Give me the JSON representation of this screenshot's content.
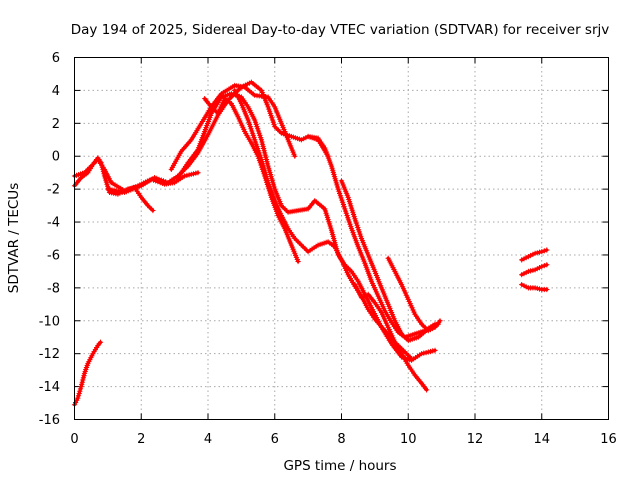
{
  "chart_data": {
    "type": "scatter",
    "title": "Day 194 of 2025, Sidereal Day-to-day VTEC variation (SDTVAR) for receiver srjv",
    "xlabel": "GPS time / hours",
    "ylabel": "SDTVAR / TECUs",
    "xlim": [
      0,
      16
    ],
    "ylim": [
      -16,
      6
    ],
    "xticks": [
      "0",
      "2",
      "4",
      "6",
      "8",
      "10",
      "12",
      "14",
      "16"
    ],
    "yticks": [
      "6",
      "4",
      "2",
      "0",
      "-2",
      "-4",
      "-6",
      "-8",
      "-10",
      "-12",
      "-14",
      "-16"
    ],
    "grid": true,
    "marker_color": "#ff0000",
    "series": [
      {
        "points": [
          [
            0.0,
            -1.8
          ],
          [
            0.2,
            -1.3
          ],
          [
            0.4,
            -1.0
          ],
          [
            0.55,
            -0.5
          ],
          [
            0.7,
            -0.1
          ],
          [
            0.8,
            -0.4
          ],
          [
            0.9,
            -1.2
          ],
          [
            1.05,
            -2.2
          ],
          [
            1.3,
            -2.3
          ],
          [
            1.6,
            -2.0
          ],
          [
            1.8,
            -1.9
          ],
          [
            2.0,
            -2.5
          ],
          [
            2.2,
            -3.0
          ],
          [
            2.35,
            -3.3
          ]
        ]
      },
      {
        "points": [
          [
            0.0,
            -1.2
          ],
          [
            0.3,
            -1.0
          ],
          [
            0.5,
            -0.6
          ],
          [
            0.7,
            -0.2
          ],
          [
            0.9,
            -0.8
          ],
          [
            1.1,
            -1.6
          ],
          [
            1.5,
            -2.1
          ],
          [
            1.9,
            -1.8
          ],
          [
            2.3,
            -1.4
          ],
          [
            2.7,
            -1.7
          ],
          [
            3.0,
            -1.6
          ],
          [
            3.3,
            -1.2
          ],
          [
            3.7,
            -1.0
          ]
        ]
      },
      {
        "points": [
          [
            1.0,
            -2.0
          ],
          [
            1.5,
            -2.2
          ],
          [
            2.0,
            -1.8
          ],
          [
            2.4,
            -1.3
          ],
          [
            2.8,
            -1.6
          ],
          [
            3.1,
            -1.2
          ],
          [
            3.4,
            -0.6
          ],
          [
            3.7,
            0.2
          ],
          [
            4.0,
            1.3
          ],
          [
            4.3,
            2.5
          ],
          [
            4.6,
            3.4
          ],
          [
            5.0,
            4.2
          ],
          [
            5.3,
            4.5
          ],
          [
            5.6,
            4.0
          ],
          [
            5.8,
            3.0
          ],
          [
            6.0,
            1.8
          ],
          [
            6.2,
            1.4
          ],
          [
            6.5,
            1.2
          ],
          [
            6.8,
            1.0
          ],
          [
            7.0,
            1.2
          ],
          [
            7.3,
            1.0
          ],
          [
            7.6,
            0.0
          ]
        ]
      },
      {
        "points": [
          [
            2.9,
            -0.8
          ],
          [
            3.2,
            0.3
          ],
          [
            3.5,
            1.0
          ],
          [
            3.8,
            2.0
          ],
          [
            4.1,
            3.0
          ],
          [
            4.4,
            3.8
          ],
          [
            4.8,
            4.3
          ],
          [
            5.1,
            4.2
          ],
          [
            5.4,
            3.7
          ],
          [
            5.8,
            3.6
          ],
          [
            6.0,
            3.0
          ],
          [
            6.2,
            2.0
          ],
          [
            6.4,
            1.0
          ],
          [
            6.6,
            0.0
          ]
        ]
      },
      {
        "points": [
          [
            3.1,
            -1.3
          ],
          [
            3.4,
            -0.4
          ],
          [
            3.7,
            0.4
          ],
          [
            3.9,
            1.5
          ],
          [
            4.1,
            2.6
          ],
          [
            4.4,
            3.6
          ],
          [
            4.7,
            3.8
          ],
          [
            5.0,
            3.6
          ],
          [
            5.2,
            3.0
          ],
          [
            5.4,
            2.2
          ],
          [
            5.6,
            1.0
          ],
          [
            5.8,
            -0.6
          ],
          [
            6.0,
            -2.0
          ],
          [
            6.2,
            -3.0
          ],
          [
            6.4,
            -3.4
          ],
          [
            6.7,
            -3.3
          ],
          [
            7.0,
            -3.2
          ],
          [
            7.2,
            -2.7
          ],
          [
            7.5,
            -3.2
          ],
          [
            7.7,
            -4.5
          ],
          [
            7.9,
            -6.0
          ],
          [
            8.1,
            -6.6
          ],
          [
            8.3,
            -7.0
          ],
          [
            8.5,
            -7.6
          ],
          [
            8.7,
            -8.4
          ],
          [
            8.9,
            -9.2
          ],
          [
            9.2,
            -10.4
          ],
          [
            9.5,
            -11.4
          ],
          [
            9.8,
            -12.2
          ],
          [
            10.1,
            -12.4
          ],
          [
            10.4,
            -12.0
          ],
          [
            10.8,
            -11.8
          ]
        ]
      },
      {
        "points": [
          [
            3.9,
            3.5
          ],
          [
            4.1,
            3.0
          ],
          [
            4.3,
            2.6
          ],
          [
            4.5,
            3.5
          ],
          [
            4.7,
            3.2
          ],
          [
            4.9,
            2.4
          ],
          [
            5.1,
            1.5
          ],
          [
            5.3,
            0.8
          ],
          [
            5.5,
            0.0
          ],
          [
            5.7,
            -1.2
          ],
          [
            5.9,
            -2.5
          ],
          [
            6.1,
            -3.6
          ],
          [
            6.3,
            -4.4
          ],
          [
            6.5,
            -5.4
          ],
          [
            6.7,
            -6.4
          ]
        ]
      },
      {
        "points": [
          [
            4.8,
            4.0
          ],
          [
            5.0,
            3.2
          ],
          [
            5.2,
            2.2
          ],
          [
            5.4,
            1.0
          ],
          [
            5.6,
            -0.2
          ],
          [
            5.8,
            -1.6
          ],
          [
            6.0,
            -2.7
          ],
          [
            6.2,
            -3.6
          ],
          [
            6.4,
            -4.4
          ],
          [
            6.6,
            -5.0
          ],
          [
            6.8,
            -5.4
          ],
          [
            7.0,
            -5.8
          ],
          [
            7.3,
            -5.4
          ],
          [
            7.6,
            -5.2
          ],
          [
            7.8,
            -5.5
          ],
          [
            8.0,
            -6.3
          ],
          [
            8.2,
            -7.2
          ],
          [
            8.4,
            -7.9
          ],
          [
            8.6,
            -8.5
          ],
          [
            8.8,
            -9.3
          ],
          [
            9.0,
            -9.9
          ],
          [
            9.3,
            -10.6
          ],
          [
            9.6,
            -11.3
          ],
          [
            9.9,
            -11.9
          ],
          [
            10.1,
            -12.3
          ]
        ]
      },
      {
        "points": [
          [
            7.0,
            1.2
          ],
          [
            7.3,
            1.1
          ],
          [
            7.5,
            0.5
          ],
          [
            7.7,
            -0.6
          ],
          [
            7.9,
            -2.0
          ],
          [
            8.1,
            -3.2
          ],
          [
            8.3,
            -4.4
          ],
          [
            8.5,
            -5.5
          ],
          [
            8.7,
            -6.5
          ],
          [
            8.9,
            -7.6
          ],
          [
            9.1,
            -8.5
          ],
          [
            9.3,
            -9.4
          ],
          [
            9.5,
            -10.1
          ],
          [
            9.7,
            -10.7
          ],
          [
            9.9,
            -11.0
          ],
          [
            10.2,
            -10.8
          ],
          [
            10.5,
            -10.6
          ],
          [
            10.8,
            -10.2
          ]
        ]
      },
      {
        "points": [
          [
            8.0,
            -1.5
          ],
          [
            8.2,
            -2.5
          ],
          [
            8.4,
            -3.8
          ],
          [
            8.6,
            -5.0
          ],
          [
            8.8,
            -6.0
          ],
          [
            9.0,
            -7.0
          ],
          [
            9.2,
            -8.0
          ],
          [
            9.4,
            -9.0
          ],
          [
            9.6,
            -10.0
          ],
          [
            9.8,
            -10.8
          ],
          [
            10.0,
            -11.2
          ],
          [
            10.3,
            -11.0
          ],
          [
            10.6,
            -10.5
          ],
          [
            10.9,
            -10.2
          ]
        ]
      },
      {
        "points": [
          [
            8.4,
            -7.8
          ],
          [
            8.6,
            -8.6
          ],
          [
            8.8,
            -8.4
          ],
          [
            9.0,
            -8.9
          ],
          [
            9.2,
            -9.5
          ],
          [
            9.4,
            -10.4
          ],
          [
            9.6,
            -11.3
          ],
          [
            9.8,
            -12.0
          ],
          [
            10.0,
            -12.7
          ],
          [
            10.2,
            -13.3
          ],
          [
            10.4,
            -13.8
          ],
          [
            10.55,
            -14.2
          ]
        ]
      },
      {
        "points": [
          [
            9.4,
            -6.2
          ],
          [
            9.6,
            -7.0
          ],
          [
            9.8,
            -7.8
          ],
          [
            10.0,
            -8.7
          ],
          [
            10.2,
            -9.6
          ],
          [
            10.4,
            -10.2
          ],
          [
            10.6,
            -10.6
          ],
          [
            10.8,
            -10.4
          ],
          [
            10.95,
            -10.0
          ]
        ]
      },
      {
        "points": [
          [
            0.0,
            -15.1
          ],
          [
            0.1,
            -14.7
          ],
          [
            0.2,
            -14.0
          ],
          [
            0.3,
            -13.2
          ],
          [
            0.4,
            -12.6
          ],
          [
            0.55,
            -12.0
          ],
          [
            0.7,
            -11.5
          ],
          [
            0.78,
            -11.3
          ]
        ]
      },
      {
        "points": [
          [
            13.4,
            -6.3
          ],
          [
            13.6,
            -6.1
          ],
          [
            13.8,
            -5.9
          ],
          [
            14.0,
            -5.8
          ],
          [
            14.15,
            -5.7
          ]
        ]
      },
      {
        "points": [
          [
            13.4,
            -7.2
          ],
          [
            13.6,
            -7.0
          ],
          [
            13.8,
            -6.9
          ],
          [
            14.0,
            -6.7
          ],
          [
            14.15,
            -6.6
          ]
        ]
      },
      {
        "points": [
          [
            13.4,
            -7.8
          ],
          [
            13.6,
            -8.0
          ],
          [
            13.8,
            -8.0
          ],
          [
            14.0,
            -8.1
          ],
          [
            14.15,
            -8.1
          ]
        ]
      }
    ]
  }
}
